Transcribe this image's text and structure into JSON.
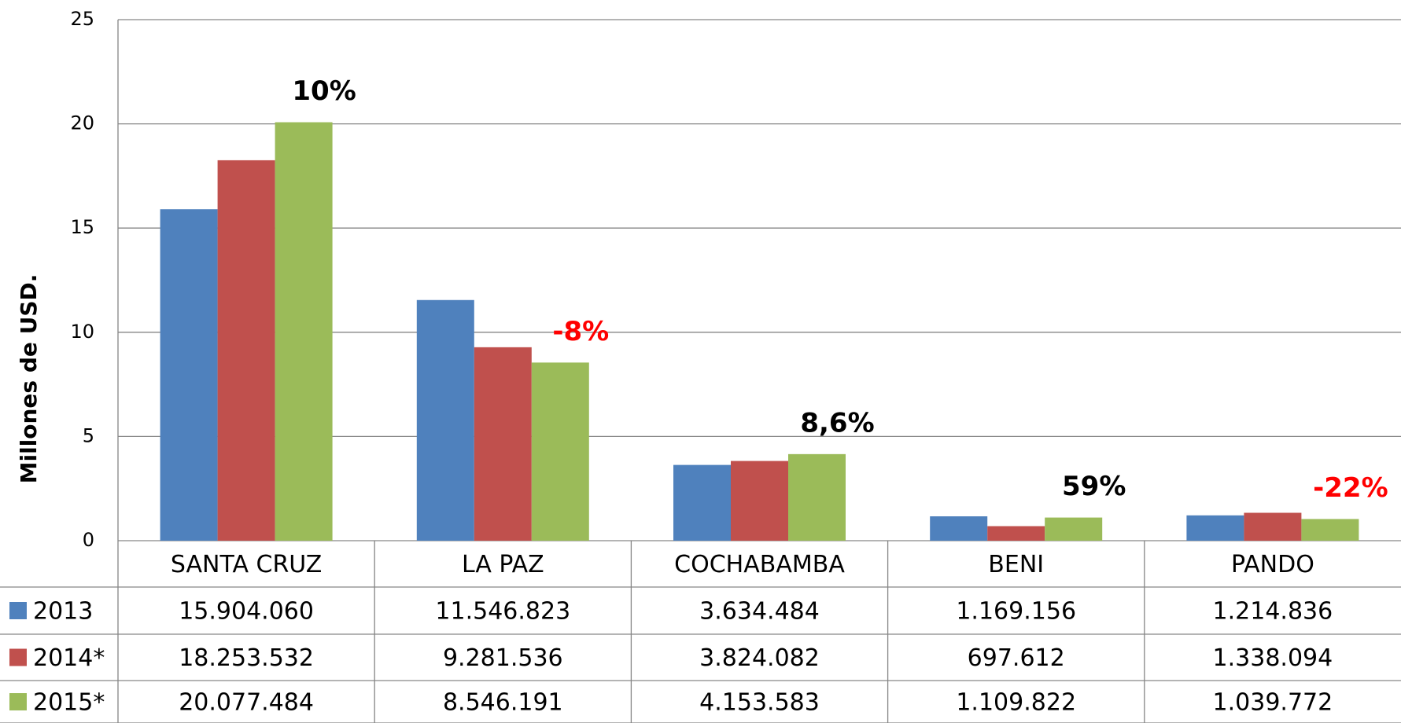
{
  "chart_data": {
    "type": "bar",
    "ylabel": "Millones de USD.",
    "categories": [
      "SANTA CRUZ",
      "LA PAZ",
      "COCHABAMBA",
      "BENI",
      "PANDO"
    ],
    "series": [
      {
        "name": "2013",
        "color": "#4f81bd",
        "values": [
          15.90406,
          11.546823,
          3.634484,
          1.169156,
          1.214836
        ],
        "value_labels": [
          "15.904.060",
          "11.546.823",
          "3.634.484",
          "1.169.156",
          "1.214.836"
        ]
      },
      {
        "name": "2014*",
        "color": "#c0504d",
        "values": [
          18.253532,
          9.281536,
          3.824082,
          0.697612,
          1.338094
        ],
        "value_labels": [
          "18.253.532",
          "9.281.536",
          "3.824.082",
          "697.612",
          "1.338.094"
        ]
      },
      {
        "name": "2015*",
        "color": "#9bbb59",
        "values": [
          20.077484,
          8.546191,
          4.153583,
          1.109822,
          1.039772
        ],
        "value_labels": [
          "20.077.484",
          "8.546.191",
          "4.153.583",
          "1.109.822",
          "1.039.772"
        ]
      }
    ],
    "annotations": [
      {
        "text": "10%",
        "color": "#000000"
      },
      {
        "text": "-8%",
        "color": "#ff0000"
      },
      {
        "text": "8,6%",
        "color": "#000000"
      },
      {
        "text": "59%",
        "color": "#000000"
      },
      {
        "text": "-22%",
        "color": "#ff0000"
      }
    ],
    "ylim": [
      0,
      25
    ],
    "yticks": [
      0,
      5,
      10,
      15,
      20,
      25
    ],
    "grid": true
  }
}
